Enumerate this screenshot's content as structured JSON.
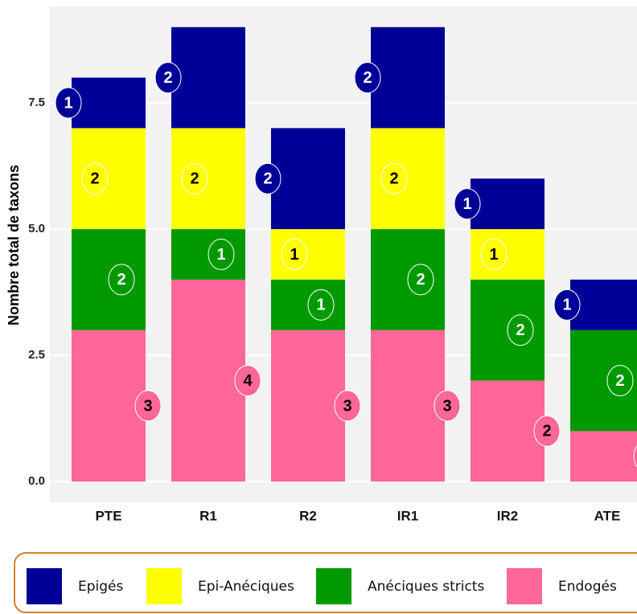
{
  "chart_data": {
    "type": "stacked_bar",
    "y_label": "Nombre total de taxons",
    "categories": [
      "PTE",
      "R1",
      "R2",
      "IR1",
      "IR2",
      "ATE"
    ],
    "series": [
      {
        "name": "Epigés",
        "color": "#000099",
        "values": [
          1,
          2,
          2,
          2,
          1,
          1
        ]
      },
      {
        "name": "Epi-Anéciques",
        "color": "#ffff00",
        "values": [
          2,
          2,
          1,
          2,
          1,
          0
        ]
      },
      {
        "name": "Anéciques stricts",
        "color": "#009900",
        "values": [
          2,
          1,
          1,
          2,
          2,
          2
        ]
      },
      {
        "name": "Endogés",
        "color": "#ff6699",
        "values": [
          3,
          4,
          3,
          3,
          2,
          1
        ]
      }
    ],
    "ylim": [
      -0.41,
      9.41
    ],
    "yticks": [
      {
        "value": 0,
        "label": "0.0"
      },
      {
        "value": 2.5,
        "label": "2.5"
      },
      {
        "value": 5,
        "label": "5.0"
      },
      {
        "value": 7.5,
        "label": "7.5"
      }
    ],
    "grid": true,
    "legend": "bottom"
  }
}
